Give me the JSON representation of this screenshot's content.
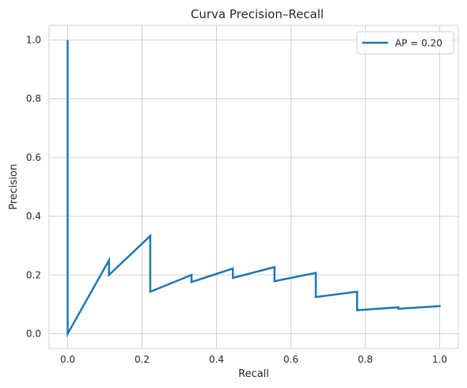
{
  "chart_data": {
    "type": "line",
    "title": "Curva Precision–Recall",
    "xlabel": "Recall",
    "ylabel": "Precision",
    "xlim": [
      -0.05,
      1.05
    ],
    "ylim": [
      -0.05,
      1.05
    ],
    "xticks": [
      0.0,
      0.2,
      0.4,
      0.6,
      0.8,
      1.0
    ],
    "xtick_labels": [
      "0.0",
      "0.2",
      "0.4",
      "0.6",
      "0.8",
      "1.0"
    ],
    "yticks": [
      0.0,
      0.2,
      0.4,
      0.6,
      0.8,
      1.0
    ],
    "ytick_labels": [
      "0.0",
      "0.2",
      "0.4",
      "0.6",
      "0.8",
      "1.0"
    ],
    "grid": true,
    "legend_position": "top-right",
    "series": [
      {
        "name": "AP = 0.20",
        "color": "#1f77b4",
        "x": [
          0.0,
          0.0,
          0.111,
          0.111,
          0.222,
          0.222,
          0.333,
          0.333,
          0.444,
          0.444,
          0.556,
          0.556,
          0.667,
          0.667,
          0.778,
          0.778,
          0.889,
          0.889,
          1.0,
          1.0
        ],
        "y": [
          1.0,
          0.0,
          0.25,
          0.2,
          0.333,
          0.143,
          0.2,
          0.176,
          0.222,
          0.19,
          0.227,
          0.179,
          0.207,
          0.125,
          0.143,
          0.08,
          0.09,
          0.085,
          0.094,
          0.091
        ]
      }
    ]
  }
}
